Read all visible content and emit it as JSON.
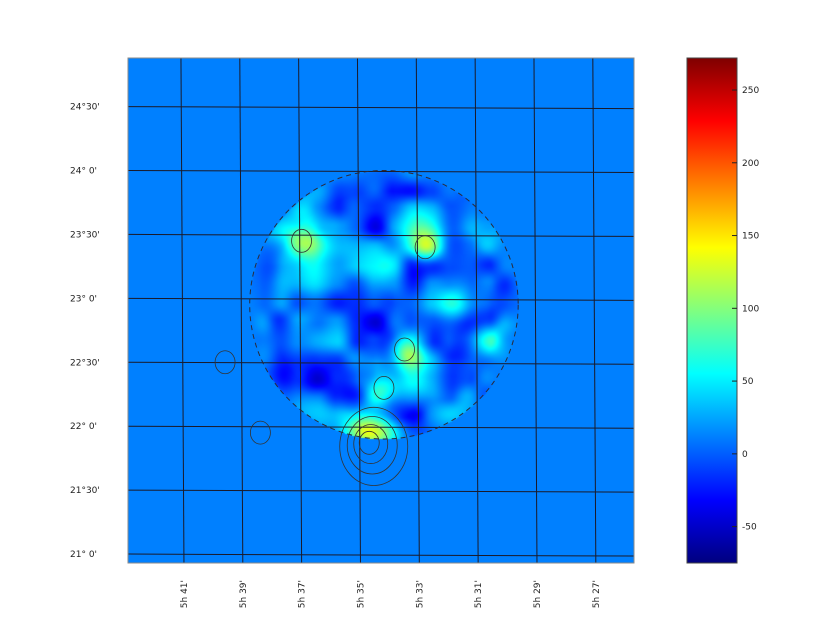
{
  "chart_data": {
    "type": "heatmap",
    "title": "",
    "xlabel": "",
    "ylabel": "",
    "colorbar": {
      "range": [
        -75,
        272
      ],
      "ticks": [
        {
          "value": 250,
          "label": "250"
        },
        {
          "value": 200,
          "label": "200"
        },
        {
          "value": 150,
          "label": "150"
        },
        {
          "value": 100,
          "label": "100"
        },
        {
          "value": 50,
          "label": "50"
        },
        {
          "value": 0,
          "label": "0"
        },
        {
          "value": -50,
          "label": "-50"
        }
      ],
      "colormap": "jet"
    },
    "y_ticks": [
      {
        "value": 24.5,
        "label": "24°30'"
      },
      {
        "value": 24.0,
        "label": "24° 0'"
      },
      {
        "value": 23.5,
        "label": "23°30'"
      },
      {
        "value": 23.0,
        "label": "23° 0'"
      },
      {
        "value": 22.5,
        "label": "22°30'"
      },
      {
        "value": 22.0,
        "label": "22° 0'"
      },
      {
        "value": 21.5,
        "label": "21°30'"
      },
      {
        "value": 21.0,
        "label": "21° 0'"
      }
    ],
    "x_ticks": [
      {
        "value": 41,
        "label": "5h 41'"
      },
      {
        "value": 39,
        "label": "5h 39'"
      },
      {
        "value": 37,
        "label": "5h 37'"
      },
      {
        "value": 35,
        "label": "5h 35'"
      },
      {
        "value": 33,
        "label": "5h 33'"
      },
      {
        "value": 31,
        "label": "5h 31'"
      },
      {
        "value": 29,
        "label": "5h 29'"
      },
      {
        "value": 27,
        "label": "5h 27'"
      }
    ],
    "x_range_min": [
      42.8,
      25.6
    ],
    "y_range_deg": [
      20.93,
      24.88
    ],
    "field": {
      "background": 12,
      "disk": {
        "center": [
          34.1,
          22.95
        ],
        "radius_deg": 1.05
      },
      "peaks": [
        {
          "x": 34.6,
          "y": 21.87,
          "amplitude": 260
        },
        {
          "x": 33.4,
          "y": 22.6,
          "amplitude": 85
        },
        {
          "x": 32.7,
          "y": 23.4,
          "amplitude": 85
        },
        {
          "x": 36.9,
          "y": 23.45,
          "amplitude": 60
        },
        {
          "x": 39.5,
          "y": 22.5,
          "amplitude": 60
        },
        {
          "x": 38.3,
          "y": 21.95,
          "amplitude": 55
        },
        {
          "x": 34.1,
          "y": 22.3,
          "amplitude": 55
        }
      ]
    }
  }
}
